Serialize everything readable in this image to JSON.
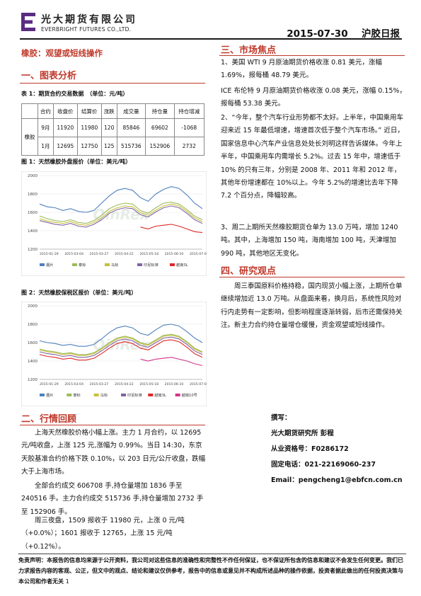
{
  "header": {
    "company_cn": "光大期货有限公司",
    "company_en": "EVERBRIGHT FUTURES CO.,LTD.",
    "date": "2015-07-30",
    "report_type": "沪胶日报"
  },
  "title": "橡胶：观望或短线操作",
  "sections": {
    "s1": "一、图表分析",
    "s2": "二、行情回顾",
    "s3": "三、市场焦点",
    "s4": "四、研究观点"
  },
  "table": {
    "caption": "表 1：期货合约交易数据　（单位：元/吨）",
    "headers": [
      "合约",
      "收盘价",
      "结算价",
      "涨跌",
      "成交量",
      "持仓量",
      "持仓增减"
    ],
    "product": "橡胶",
    "rows": [
      [
        "9月",
        "11920",
        "11980",
        "120",
        "85846",
        "69602",
        "-1068"
      ],
      [
        "1月",
        "12695",
        "12750",
        "125",
        "515736",
        "152906",
        "2732"
      ]
    ]
  },
  "fig1": {
    "caption": "图 1：天然橡胶外盘报价（单位：美元/吨）",
    "watermark": "QinRex",
    "chart_data": {
      "type": "line",
      "yticks": [
        1200,
        1400,
        1600,
        1800,
        2000
      ],
      "ylim": [
        1200,
        2000
      ],
      "xticks": [
        "2015-01-29",
        "2015-03-04",
        "2015-03-27",
        "2015-04-22",
        "2015-05-18",
        "2015-06-10",
        "2015-07-06"
      ],
      "legend": [
        "烟片",
        "泰标",
        "马标",
        "印尼标准",
        "越南3L"
      ],
      "colors": [
        "#4f81bd",
        "#9bbb59",
        "#c7bf3f",
        "#8064a2",
        "#e02828"
      ],
      "series": [
        {
          "name": "烟片",
          "values": [
            1690,
            1660,
            1650,
            1620,
            1640,
            1610,
            1600,
            1620,
            1700,
            1780,
            1840,
            1860,
            1840,
            1760,
            1720,
            1800,
            1850,
            1880,
            1860,
            1790,
            1700,
            1640
          ]
        },
        {
          "name": "泰标",
          "values": [
            1560,
            1530,
            1510,
            1500,
            1520,
            1490,
            1480,
            1510,
            1570,
            1640,
            1680,
            1700,
            1690,
            1620,
            1590,
            1650,
            1700,
            1710,
            1690,
            1630,
            1560,
            1520
          ]
        },
        {
          "name": "马标",
          "values": [
            1530,
            1505,
            1490,
            1480,
            1500,
            1470,
            1460,
            1490,
            1540,
            1610,
            1650,
            1670,
            1660,
            1595,
            1570,
            1625,
            1670,
            1690,
            1670,
            1610,
            1540,
            1500
          ]
        },
        {
          "name": "印尼标准",
          "values": [
            1510,
            1490,
            1470,
            1460,
            1480,
            1450,
            1440,
            1470,
            1520,
            1590,
            1630,
            1650,
            1640,
            1575,
            1550,
            1605,
            1650,
            1670,
            1650,
            1590,
            1520,
            1480
          ]
        },
        {
          "name": "越南3L",
          "values": [
            null,
            null,
            null,
            null,
            null,
            null,
            null,
            null,
            null,
            null,
            null,
            null,
            null,
            1440,
            1420,
            1450,
            1460,
            1470,
            1450,
            1420,
            1390,
            1380
          ]
        }
      ]
    }
  },
  "fig2": {
    "caption": "图 2：天然橡胶保税区报价（单位：美元/吨）",
    "watermark": "QinRex",
    "chart_data": {
      "type": "line",
      "yticks": [
        1200,
        1400,
        1600,
        1800,
        2000
      ],
      "ylim": [
        1200,
        2000
      ],
      "xticks": [
        "2015-01-29",
        "2015-03-04",
        "2015-03-27",
        "2015-04-22",
        "2015-05-18",
        "2015-06-10",
        "2015-07-06"
      ],
      "legend": [
        "烟片",
        "泰标",
        "马标",
        "印尼标准",
        "越南3L",
        "越南10号"
      ],
      "colors": [
        "#4f81bd",
        "#9bbb59",
        "#c7bf3f",
        "#8064a2",
        "#e02828",
        "#d6338a"
      ],
      "series": [
        {
          "name": "烟片",
          "values": [
            1620,
            1600,
            1590,
            1570,
            1580,
            1560,
            1560,
            1580,
            1640,
            1710,
            1760,
            1780,
            1760,
            1700,
            1680,
            1740,
            1790,
            1800,
            1780,
            1720,
            1650,
            1600
          ]
        },
        {
          "name": "泰标",
          "values": [
            1530,
            1510,
            1500,
            1480,
            1490,
            1470,
            1470,
            1490,
            1540,
            1600,
            1650,
            1670,
            1650,
            1600,
            1580,
            1630,
            1680,
            1690,
            1670,
            1610,
            1540,
            1500
          ]
        },
        {
          "name": "马标",
          "values": [
            1520,
            1500,
            1490,
            1470,
            1480,
            1460,
            1460,
            1480,
            1530,
            1590,
            1640,
            1660,
            1640,
            1590,
            1570,
            1620,
            1670,
            1680,
            1660,
            1600,
            1530,
            1490
          ]
        },
        {
          "name": "印尼标准",
          "values": [
            1500,
            1480,
            1470,
            1450,
            1460,
            1440,
            1440,
            1460,
            1510,
            1570,
            1620,
            1640,
            1620,
            1570,
            1550,
            1600,
            1650,
            1660,
            1640,
            1580,
            1510,
            1470
          ]
        },
        {
          "name": "越南3L",
          "values": [
            1470,
            1450,
            1440,
            1420,
            1430,
            1410,
            1410,
            1430,
            1480,
            1540,
            1590,
            1610,
            1590,
            1540,
            1520,
            1570,
            1620,
            1630,
            1610,
            1550,
            1480,
            1440
          ]
        },
        {
          "name": "越南10号",
          "values": [
            null,
            null,
            null,
            null,
            null,
            null,
            null,
            null,
            null,
            null,
            null,
            null,
            null,
            1420,
            1400,
            1420,
            1430,
            1440,
            1420,
            1400,
            1370,
            1350
          ]
        }
      ]
    }
  },
  "review": {
    "p1": "上海天然橡胶价格小幅上涨。主力 1 月合约，以 12695 元/吨收盘，上涨 125 元,涨幅为 0.99%。当日 14:30，东京天胶基准合约价格下跌 0.10%，以 203 日元/公斤收盘，跌幅大于上海市场。",
    "p2": "全部合约成交 606708 手,持仓量增加 1836 手至 240516 手。主力合约成交 515736 手,持仓量增加 2732 手至 152906 手。",
    "p3": "周三夜盘，1509 报收于 11980 元，上涨 0 元/吨（+0.0%）；1601 报收于 12765，上涨 15 元/吨（+0.12%）。"
  },
  "focus": {
    "p1": "1、美国 WTI 9 月原油期货价格收涨 0.81 美元，涨幅 1.69%，报每桶 48.79 美元。",
    "p2": "ICE 布伦特 9 月原油期货价格收涨 0.08 美元，涨幅 0.15%，报每桶 53.38 美元。",
    "p3": "2、“今年，整个汽车行业形势都不太好。上半年，中国乘用车迎来近 15 年最低增速，增速首次低于整个汽车市场。” 近日，国家信息中心汽车产业信息处处长刘明这样告诉媒体。今年上半年，中国乘用车内需增长 5.2%。过去 15 年中，增速低于 10% 的只有三年，分别是 2008 年、2011 年和 2012 年，其他年份增速都在 10%以上。今年 5.2%的增速比去年下降 7.2 个百分点，降幅较高。",
    "p4": "3、周二上期所天然橡胶期货仓单为 13.0 万吨，增加 1240 吨。其中，上海增加 150 吨，海南增加 100 吨，天津增加 990 吨，其他地区无变化。"
  },
  "view": {
    "p1": "周三泰国原料价格持稳，国内现货小幅上涨，上期所仓单继续增加近 13.0 万吨。从盘面来看，换月后，系统性风险对行内走势有一定影响，但影响程度逐渐转弱，后市还需保持关注。新主力合约持仓量增仓缓慢，资金观望或短线操作。"
  },
  "contact": {
    "author_label": "撰写：",
    "author": "光大期货研究所 彭程",
    "license": "从业资格号：F0286172",
    "phone": "固定电话：021-22169060-237",
    "email": "Email：pengcheng1@ebfcn.com.cn"
  },
  "disclaimer": "免责声明：本报告的信息均来源于公开资料，我公司对这些信息的准确性和完整性不作任何保证，也不保证所包含的信息和建议不会发生任何变更。我们已力求报告内容的客观、公正，但文中的观点、结论和建议仅供参考，报告中的信息或意见并不构成所述品种的操作依据，投资者据此做出的任何投资决策与本公司和作者无关",
  "page_number": "1",
  "colors": {
    "accent_red": "#c0392b",
    "logo_purple": "#5b2c83"
  }
}
